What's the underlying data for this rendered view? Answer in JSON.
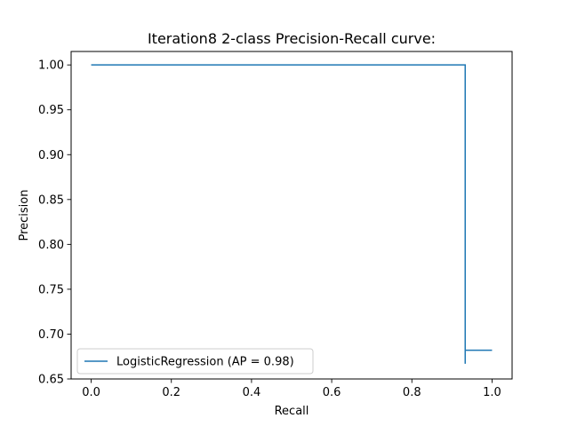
{
  "chart_data": {
    "type": "line",
    "title": "Iteration8 2-class Precision-Recall curve:",
    "xlabel": "Recall",
    "ylabel": "Precision",
    "xlim": [
      -0.05,
      1.05
    ],
    "ylim": [
      0.65,
      1.015
    ],
    "xticks": [
      0.0,
      0.2,
      0.4,
      0.6,
      0.8,
      1.0
    ],
    "xtick_labels": [
      "0.0",
      "0.2",
      "0.4",
      "0.6",
      "0.8",
      "1.0"
    ],
    "yticks": [
      0.65,
      0.7,
      0.75,
      0.8,
      0.85,
      0.9,
      0.95,
      1.0
    ],
    "ytick_labels": [
      "0.65",
      "0.70",
      "0.75",
      "0.80",
      "0.85",
      "0.90",
      "0.95",
      "1.00"
    ],
    "grid": false,
    "legend_position": "lower-left",
    "series": [
      {
        "name": "LogisticRegression (AP = 0.98)",
        "color": "#1f77b4",
        "drawstyle": "steps-post",
        "x": [
          0.0,
          0.933,
          0.933,
          0.933,
          1.0
        ],
        "y": [
          1.0,
          1.0,
          0.667,
          0.682,
          0.682
        ]
      }
    ]
  }
}
